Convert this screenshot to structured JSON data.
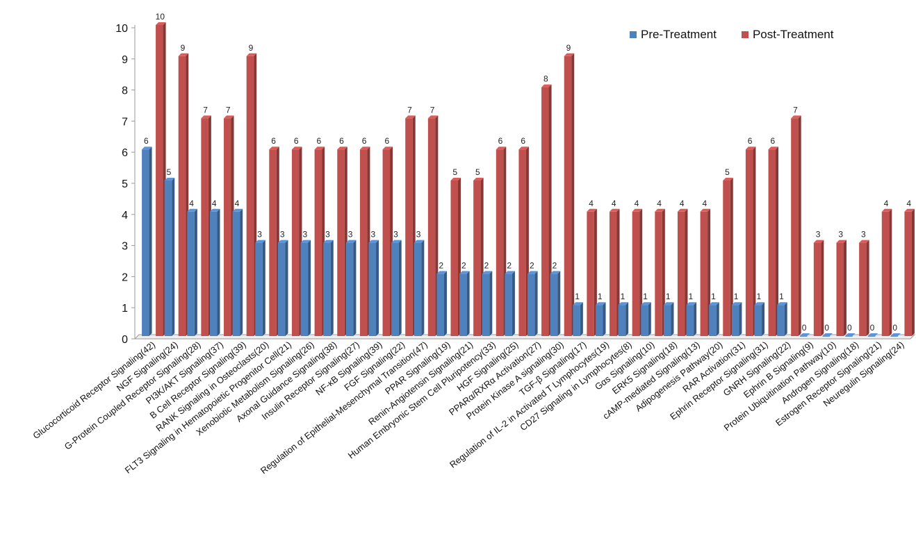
{
  "chart_data": {
    "type": "bar",
    "title": "",
    "xlabel": "",
    "ylabel": "",
    "ylim": [
      0,
      10
    ],
    "yticks": [
      "0",
      "1",
      "2",
      "3",
      "4",
      "5",
      "6",
      "7",
      "8",
      "9",
      "10"
    ],
    "legend_position": "top-right",
    "categories": [
      "Glucocorticoid Receptor Signaling(42)",
      "NGF Signaling(24)",
      "G-Protein Coupled Receptor Signaling(28)",
      "PI3K/AKT Signaling(37)",
      "B Cell Receptor Signaling(39)",
      "RANK Signaling in Osteoclasts(20)",
      "FLT3 Signaling in Hematopoietic Progenitor Cell(21)",
      "Xenobiotic Metabolism Signaling(26)",
      "Axonal Guidance Signaling(38)",
      "Insulin Receptor Signaling(27)",
      "NF-κB Signaling(39)",
      "FGF Signaling(22)",
      "Regulation of Epithelial-Mesenchymal Transition(47)",
      "PPAR Signaling(19)",
      "Renin-Angiotensin Signaling(21)",
      "Human Embryonic Stem Cell Pluripotency(33)",
      "HGF Signaling(25)",
      "PPARα/RXRα Activation(27)",
      "Protein Kinase A signaling(30)",
      "TGF-β Signaling(17)",
      "Regulation of IL-2  in Activated  T Lymphocytes(19)",
      "CD27 Signaling in Lymphocytes(8)",
      "Gαs Signaling(10)",
      "ERK5 Signaling(18)",
      "cAMP-mediated Signaling(13)",
      "Adipogenesis Pathway(20)",
      "RAR Activation(31)",
      "Ephrin Receptor Signaling(31)",
      "GNRH Signaling(22)",
      "Ephrin B Signaling(9)",
      "Protein Ubiquitination Pathway(10)",
      "Androgen Signaling(18)",
      "Estrogen Receptor Signaling(21)",
      "Neuregulin Signaling(24)"
    ],
    "series": [
      {
        "name": "Pre-Treatment",
        "color": "#4f81bd",
        "values": [
          6,
          5,
          4,
          4,
          4,
          3,
          3,
          3,
          3,
          3,
          3,
          3,
          3,
          2,
          2,
          2,
          2,
          2,
          2,
          1,
          1,
          1,
          1,
          1,
          1,
          1,
          1,
          1,
          1,
          0,
          0,
          0,
          0,
          0
        ]
      },
      {
        "name": "Post-Treatment",
        "color": "#c0504d",
        "values": [
          10,
          9,
          7,
          7,
          9,
          6,
          6,
          6,
          6,
          6,
          6,
          7,
          7,
          5,
          5,
          6,
          6,
          8,
          9,
          4,
          4,
          4,
          4,
          4,
          4,
          5,
          6,
          6,
          7,
          3,
          3,
          3,
          4,
          4
        ]
      }
    ]
  },
  "legend": {
    "pre_label": "Pre-Treatment",
    "post_label": "Post-Treatment",
    "pre_color": "#4f81bd",
    "post_color": "#c0504d"
  }
}
